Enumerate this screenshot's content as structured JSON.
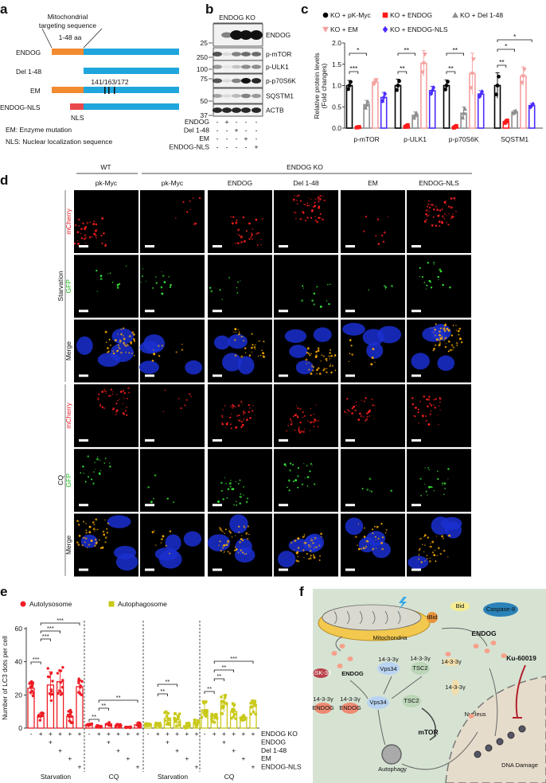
{
  "panel_labels": {
    "a": "a",
    "b": "b",
    "c": "c",
    "d": "d",
    "e": "e",
    "f": "f"
  },
  "panel_a": {
    "mts_line1": "Mitochondrial",
    "mts_line2": "targeting sequence",
    "mts_range": "1-48 aa",
    "constructs": [
      "ENDOG",
      "Del 1-48",
      "EM",
      "ENDOG-NLS"
    ],
    "mutation_sites": "141/163/172",
    "nls_tag": "NLS",
    "legend": [
      "EM: Enzyme mutation",
      "NLS: Nuclear localization sequence"
    ],
    "colors": {
      "mts": "#f28a30",
      "body": "#1fa6dc",
      "nls": "#e8474c",
      "mutation": "#111111"
    }
  },
  "panel_b": {
    "header": "ENDOG KO",
    "blots": [
      "ENDOG",
      "p-mTOR",
      "p-ULK1",
      "p-p70S6K",
      "SQSTM1",
      "ACTB"
    ],
    "markers": [
      "25",
      "250",
      "100",
      "75",
      "50",
      "37"
    ],
    "conditions": [
      {
        "label": "ENDOG",
        "signs": [
          "-",
          "+",
          "-",
          "-",
          "-"
        ]
      },
      {
        "label": "Del 1-48",
        "signs": [
          "-",
          "-",
          "+",
          "-",
          "-"
        ]
      },
      {
        "label": "EM",
        "signs": [
          "-",
          "-",
          "-",
          "+",
          "-"
        ]
      },
      {
        "label": "ENDOG-NLS",
        "signs": [
          "-",
          "-",
          "-",
          "-",
          "+"
        ]
      }
    ]
  },
  "chart_data": [
    {
      "id": "panel-c",
      "type": "bar",
      "ylabel": "Relative protein levels",
      "ylabel2": "(Fold changes)",
      "ylim": [
        0,
        2.0
      ],
      "yticks": [
        "0.0",
        "0.5",
        "1.0",
        "1.5",
        "2.0"
      ],
      "categories": [
        "p-mTOR",
        "p-ULK1",
        "p-p70S6K",
        "SQSTM1"
      ],
      "legend_position": "top",
      "series": [
        {
          "name": "KO + pK-Myc",
          "marker": "circle",
          "color": "#000000",
          "values": [
            1.0,
            1.0,
            1.0,
            1.0
          ],
          "sd": [
            0.12,
            0.15,
            0.13,
            0.3
          ]
        },
        {
          "name": "KO + ENDOG",
          "marker": "square",
          "color": "#ff1a1a",
          "values": [
            0.02,
            0.05,
            0.03,
            0.15
          ],
          "sd": [
            0.01,
            0.03,
            0.03,
            0.04
          ]
        },
        {
          "name": "KO + Del 1-48",
          "marker": "triangle-up",
          "color": "#8e8e8e",
          "values": [
            0.55,
            0.3,
            0.35,
            0.38
          ],
          "sd": [
            0.1,
            0.08,
            0.15,
            0.04
          ]
        },
        {
          "name": "KO + EM",
          "marker": "triangle-down",
          "color": "#f4a0a0",
          "values": [
            1.08,
            1.52,
            1.28,
            1.22
          ],
          "sd": [
            0.07,
            0.3,
            0.48,
            0.22
          ]
        },
        {
          "name": "KO + ENDOG-NLS",
          "marker": "diamond",
          "color": "#4a2cff",
          "values": [
            0.72,
            0.88,
            0.8,
            0.53
          ],
          "sd": [
            0.12,
            0.1,
            0.08,
            0.05
          ]
        }
      ],
      "significance": [
        {
          "category": 0,
          "from": 0,
          "to": 1,
          "label": "***"
        },
        {
          "category": 0,
          "from": 0,
          "to": 2,
          "label": "*"
        },
        {
          "category": 1,
          "from": 0,
          "to": 1,
          "label": "**"
        },
        {
          "category": 1,
          "from": 0,
          "to": 2,
          "label": "**"
        },
        {
          "category": 2,
          "from": 0,
          "to": 1,
          "label": "**"
        },
        {
          "category": 2,
          "from": 0,
          "to": 2,
          "label": "**"
        },
        {
          "category": 3,
          "from": 0,
          "to": 1,
          "label": "**"
        },
        {
          "category": 3,
          "from": 0,
          "to": 2,
          "label": "*"
        },
        {
          "category": 3,
          "from": 0,
          "to": 4,
          "label": "*"
        }
      ]
    },
    {
      "id": "panel-e",
      "type": "bar",
      "ylabel": "Number of LC3 dots per cell",
      "ylim": [
        0,
        60
      ],
      "yticks": [
        "0",
        "20",
        "40",
        "60"
      ],
      "legend_position": "top-left",
      "series": [
        {
          "name": "Autolysosome",
          "marker": "circle",
          "color": "#ee1c25"
        },
        {
          "name": "Autophagosome",
          "marker": "square",
          "color": "#c9c91a"
        }
      ],
      "row_labels": [
        "ENDOG KO",
        "ENDOG",
        "Del 1-48",
        "EM",
        "ENDOG-NLS"
      ],
      "row_signs": [
        [
          "-",
          "+",
          "+",
          "+",
          "+",
          "+"
        ],
        [
          "",
          "",
          "+",
          "",
          "",
          ""
        ],
        [
          "",
          "",
          "",
          "+",
          "",
          ""
        ],
        [
          "",
          "",
          "",
          "",
          "+",
          ""
        ],
        [
          "",
          "",
          "",
          "",
          "",
          "+"
        ]
      ],
      "groups": [
        {
          "label": "Starvation",
          "series": 0,
          "values": [
            24,
            7,
            26,
            28,
            7,
            25
          ],
          "sd": [
            4,
            2,
            8,
            7,
            3,
            4
          ],
          "significance": [
            {
              "from": 0,
              "to": 1,
              "label": "***"
            },
            {
              "from": 1,
              "to": 2,
              "label": "***"
            },
            {
              "from": 1,
              "to": 3,
              "label": "***"
            },
            {
              "from": 1,
              "to": 5,
              "label": "***"
            }
          ]
        },
        {
          "label": "CQ",
          "series": 0,
          "values": [
            2,
            1,
            2.5,
            1.5,
            0.5,
            2
          ],
          "sd": [
            0.5,
            0.5,
            0.8,
            1,
            0.3,
            1.2
          ],
          "significance": [
            {
              "from": 0,
              "to": 1,
              "label": "**"
            },
            {
              "from": 1,
              "to": 2,
              "label": "**"
            },
            {
              "from": 1,
              "to": 5,
              "label": "**"
            }
          ]
        },
        {
          "label": "Starvation",
          "series": 1,
          "values": [
            2,
            2,
            6,
            5,
            1.5,
            3
          ],
          "sd": [
            0.8,
            0.8,
            3,
            3,
            1.2,
            2
          ],
          "significance": [
            {
              "from": 1,
              "to": 2,
              "label": "**"
            },
            {
              "from": 1,
              "to": 3,
              "label": "**"
            }
          ]
        },
        {
          "label": "CQ",
          "series": 1,
          "values": [
            11,
            6,
            15,
            10,
            6,
            13
          ],
          "sd": [
            4,
            2,
            5,
            4,
            1.5,
            4
          ],
          "significance": [
            {
              "from": 0,
              "to": 1,
              "label": "**"
            },
            {
              "from": 1,
              "to": 2,
              "label": "**"
            },
            {
              "from": 1,
              "to": 3,
              "label": "**"
            },
            {
              "from": 1,
              "to": 5,
              "label": "***"
            }
          ]
        }
      ]
    }
  ],
  "panel_d": {
    "group_wt": "WT",
    "group_ko": "ENDOG KO",
    "columns": [
      "pk-Myc",
      "pk-Myc",
      "ENDOG",
      "Del 1-48",
      "EM",
      "ENDOG-NLS"
    ],
    "conditions": [
      "Starvation",
      "CQ"
    ],
    "channels": [
      {
        "label": "mCherry",
        "color": "#e8202a"
      },
      {
        "label": "GFP",
        "color": "#22b822"
      },
      {
        "label": "Merge",
        "color": "#111111"
      }
    ]
  },
  "panel_f": {
    "labels": {
      "mitochondria": "Mitochondria",
      "bid": "Bid",
      "tbid": "tBid",
      "caspase8": "Caspase-8",
      "endog_main": "ENDOG",
      "ku": "Ku-60019",
      "gsk": "GSK-3β",
      "endog_left": "ENDOG",
      "p1433_vps": "14-3-3γ",
      "vps34_top": "Vps34",
      "p1433_tsc": "14-3-3γ",
      "tsc2_top": "TSC2",
      "p1433_free1": "14-3-3γ",
      "p1433_free2": "14-3-3γ",
      "p1433_endog1": "14-3-3γ",
      "endog_c1": "ENDOG",
      "p1433_endog2": "14-3-3γ",
      "endog_c2": "ENDOG",
      "vps34": "Vps34",
      "tsc2": "TSC2",
      "mtor": "mTOR",
      "nucleus": "Nucleus",
      "autophagy": "Autophagy",
      "dna_damage": "DNA Damage"
    },
    "colors": {
      "background": "#d6e3d3",
      "nucleus": "#e6dccb",
      "inhibitor": "#b3202c"
    }
  }
}
